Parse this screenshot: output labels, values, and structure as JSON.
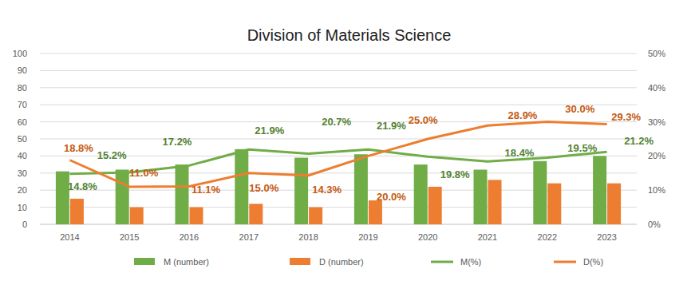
{
  "chart_data": {
    "type": "bar",
    "title": "Division of Materials Science",
    "categories": [
      "2014",
      "2015",
      "2016",
      "2017",
      "2018",
      "2019",
      "2020",
      "2021",
      "2022",
      "2023"
    ],
    "series": [
      {
        "name": "M (number)",
        "type": "bar",
        "color": "#70ad47",
        "values": [
          31,
          32,
          35,
          44,
          39,
          41,
          35,
          32,
          37,
          40
        ]
      },
      {
        "name": "D (number)",
        "type": "bar",
        "color": "#ed7d31",
        "values": [
          15,
          10,
          10,
          12,
          10,
          14,
          22,
          26,
          24,
          24
        ]
      },
      {
        "name": "M(%)",
        "type": "line",
        "axis": "y2",
        "color": "#70ad47",
        "data_labels": true,
        "values": [
          14.8,
          15.2,
          17.2,
          21.9,
          20.7,
          21.9,
          19.8,
          18.4,
          19.5,
          21.2
        ],
        "value_labels": [
          "14.8%",
          "15.2%",
          "17.2%",
          "21.9%",
          "20.7%",
          "21.9%",
          "19.8%",
          "18.4%",
          "19.5%",
          "21.2%"
        ]
      },
      {
        "name": "D(%)",
        "type": "line",
        "axis": "y2",
        "color": "#ed7d31",
        "data_labels": true,
        "values": [
          18.8,
          11.0,
          11.1,
          15.0,
          14.3,
          20.0,
          25.0,
          28.9,
          30.0,
          29.3
        ],
        "value_labels": [
          "18.8%",
          "11.0%",
          "11.1%",
          "15.0%",
          "14.3%",
          "20.0%",
          "25.0%",
          "28.9%",
          "30.0%",
          "29.3%"
        ]
      }
    ],
    "ylim": [
      0,
      100
    ],
    "yticks": [
      0,
      10,
      20,
      30,
      40,
      50,
      60,
      70,
      80,
      90,
      100
    ],
    "y2lim": [
      0,
      50
    ],
    "y2ticks": [
      {
        "value": 0,
        "label": "0%"
      },
      {
        "value": 10,
        "label": "10%"
      },
      {
        "value": 20,
        "label": "20%"
      },
      {
        "value": 30,
        "label": "30%"
      },
      {
        "value": 40,
        "label": "40%"
      },
      {
        "value": 50,
        "label": "50%"
      }
    ],
    "grid": true,
    "legend": "bottom"
  }
}
